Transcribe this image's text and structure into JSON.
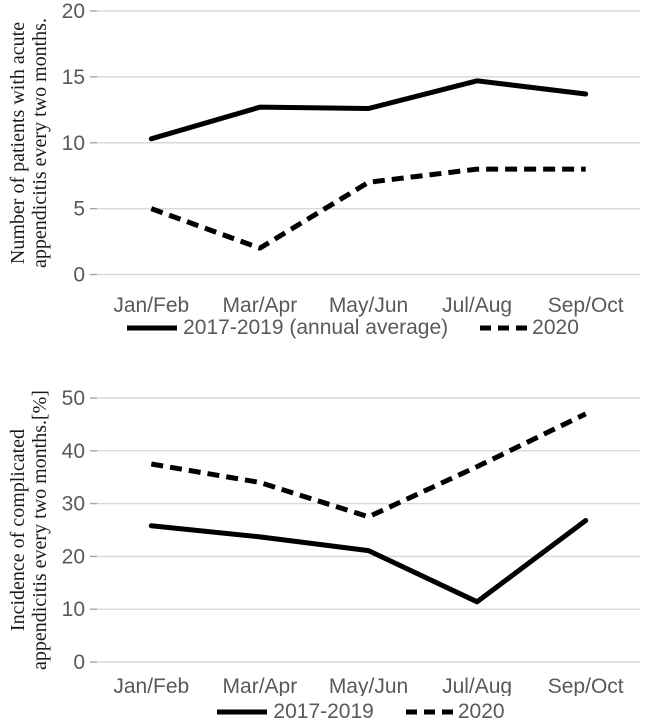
{
  "style": {
    "background": "#ffffff",
    "line_color": "#000000",
    "gridline_color": "#d9d9d9",
    "tick_mark_color": "#a6a6a6",
    "axis_label_color": "#595959",
    "axis_title_color": "#1a1a1a"
  },
  "chart_data": [
    {
      "type": "line",
      "title": "",
      "ylabel": "Number of patients with acute appendicitis every two months.",
      "ylabel_lines": [
        "Number of patients with acute",
        "appendicitis every two months."
      ],
      "xlabel": "",
      "categories": [
        "Jan/Feb",
        "Mar/Apr",
        "May/Jun",
        "Jul/Aug",
        "Sep/Oct"
      ],
      "series": [
        {
          "name": "2017-2019 (annual average)",
          "line_style": "solid",
          "values": [
            10.3,
            12.7,
            12.6,
            14.7,
            13.7
          ]
        },
        {
          "name": "2020",
          "line_style": "dashed",
          "values": [
            5,
            2,
            7,
            8,
            8
          ]
        }
      ],
      "ylim": [
        0,
        20
      ],
      "yticks": [
        0,
        5,
        10,
        15,
        20
      ],
      "grid": true,
      "legend_position": "bottom"
    },
    {
      "type": "line",
      "title": "",
      "ylabel": "Incidence of complicated appendicitis every two months.[%]",
      "ylabel_lines": [
        "Incidence of complicated",
        "appendicitis every two months.[%]"
      ],
      "xlabel": "",
      "categories": [
        "Jan/Feb",
        "Mar/Apr",
        "May/Jun",
        "Jul/Aug",
        "Sep/Oct"
      ],
      "series": [
        {
          "name": "2017-2019",
          "line_style": "solid",
          "values": [
            25.8,
            23.7,
            21.1,
            11.4,
            26.8
          ]
        },
        {
          "name": "2020",
          "line_style": "dashed",
          "values": [
            37.5,
            34,
            27.5,
            37,
            47
          ]
        }
      ],
      "ylim": [
        0,
        50
      ],
      "yticks": [
        0,
        10,
        20,
        30,
        40,
        50
      ],
      "grid": true,
      "legend_position": "bottom"
    }
  ]
}
